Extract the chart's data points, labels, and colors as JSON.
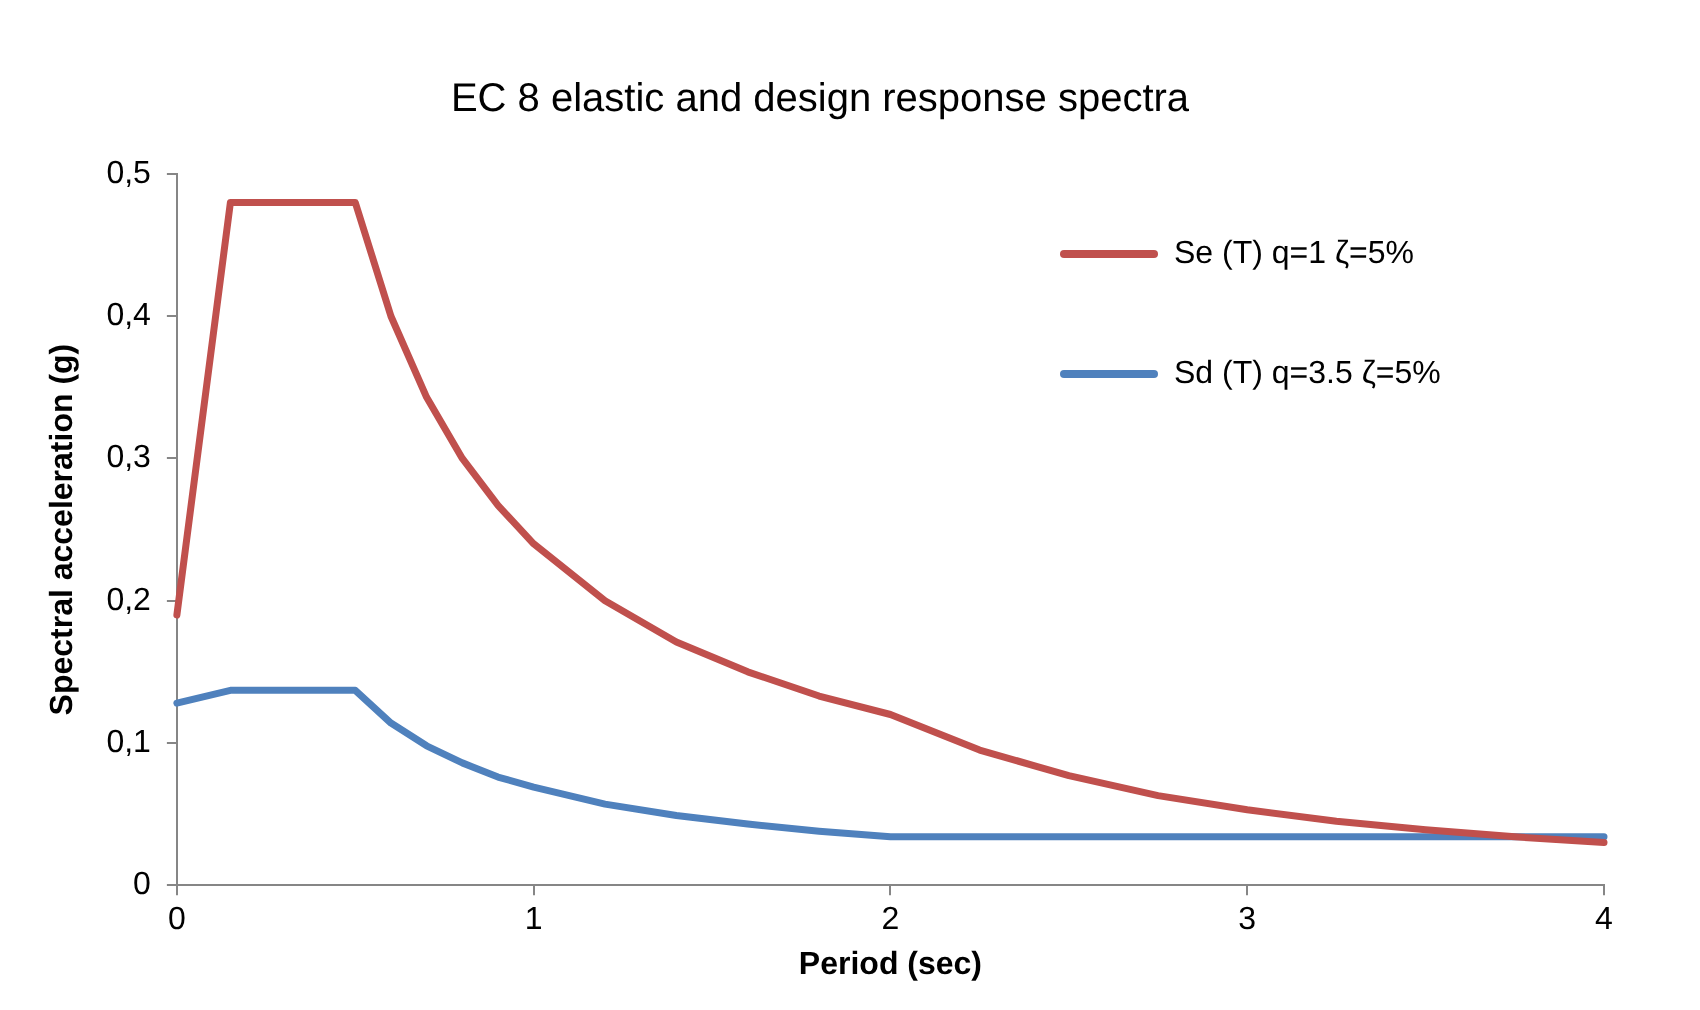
{
  "chart_data": {
    "type": "line",
    "title": "EC 8 elastic and design response spectra",
    "xlabel": "Period (sec)",
    "ylabel": "Spectral acceleration (g)",
    "x": [
      0,
      0.15,
      0.5,
      0.6,
      0.7,
      0.8,
      0.9,
      1,
      1.2,
      1.4,
      1.6,
      1.8,
      2,
      2.25,
      2.5,
      2.75,
      3,
      3.25,
      3.5,
      3.75,
      4
    ],
    "series": [
      {
        "name": "Se (T) q=1 ζ=5%",
        "color": "#c0504d",
        "values": [
          0.19,
          0.48,
          0.48,
          0.4,
          0.343,
          0.3,
          0.267,
          0.24,
          0.2,
          0.171,
          0.15,
          0.133,
          0.12,
          0.095,
          0.077,
          0.063,
          0.053,
          0.045,
          0.039,
          0.034,
          0.03
        ]
      },
      {
        "name": "Sd (T) q=3.5 ζ=5%",
        "color": "#4f81bd",
        "values": [
          0.128,
          0.137,
          0.137,
          0.114,
          0.098,
          0.086,
          0.076,
          0.069,
          0.057,
          0.049,
          0.043,
          0.038,
          0.034,
          0.034,
          0.034,
          0.034,
          0.034,
          0.034,
          0.034,
          0.034,
          0.034
        ]
      }
    ],
    "xlim": [
      0,
      4
    ],
    "xticks": [
      0,
      1,
      2,
      3,
      4
    ],
    "ylim": [
      0,
      0.5
    ],
    "yticks": [
      0,
      {
        "value": 0.1,
        "label": "0,1"
      },
      {
        "value": 0.2,
        "label": "0,2"
      },
      {
        "value": 0.3,
        "label": "0,3"
      },
      {
        "value": 0.4,
        "label": "0,4"
      },
      {
        "value": 0.5,
        "label": "0,5"
      }
    ],
    "grid": false,
    "legend": "top right",
    "marker": "none",
    "line_style": "solid"
  }
}
